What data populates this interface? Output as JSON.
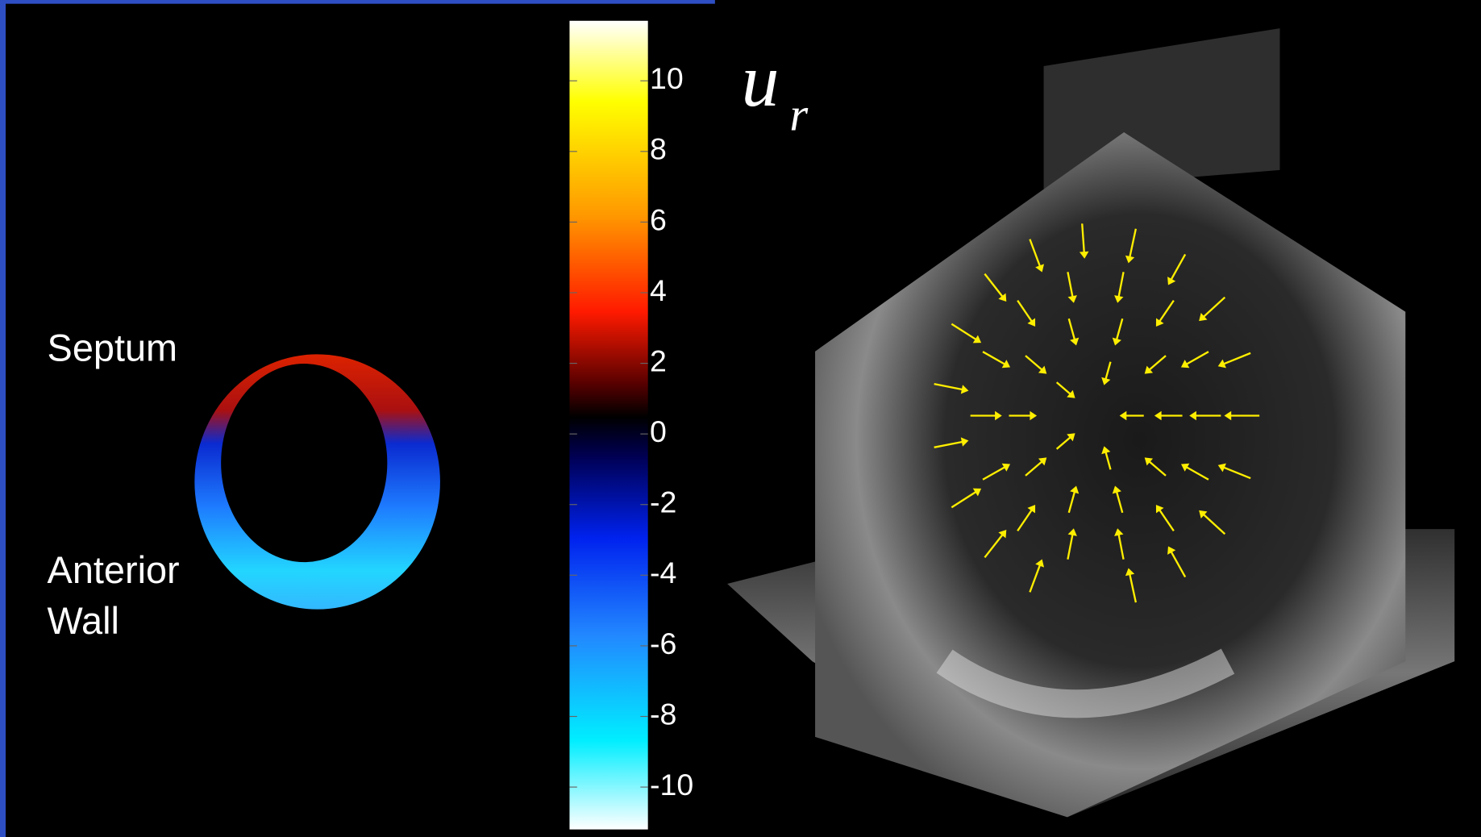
{
  "labels": {
    "septum": "Septum",
    "anterior_wall": [
      "Anterior",
      "Wall"
    ],
    "quantity": "u",
    "quantity_subscript": "r"
  },
  "colorbar": {
    "lim": [
      -11.2,
      11.7
    ],
    "ticks": [
      10,
      8,
      6,
      4,
      2,
      0,
      -2,
      -4,
      -6,
      -8,
      -10
    ]
  }
}
